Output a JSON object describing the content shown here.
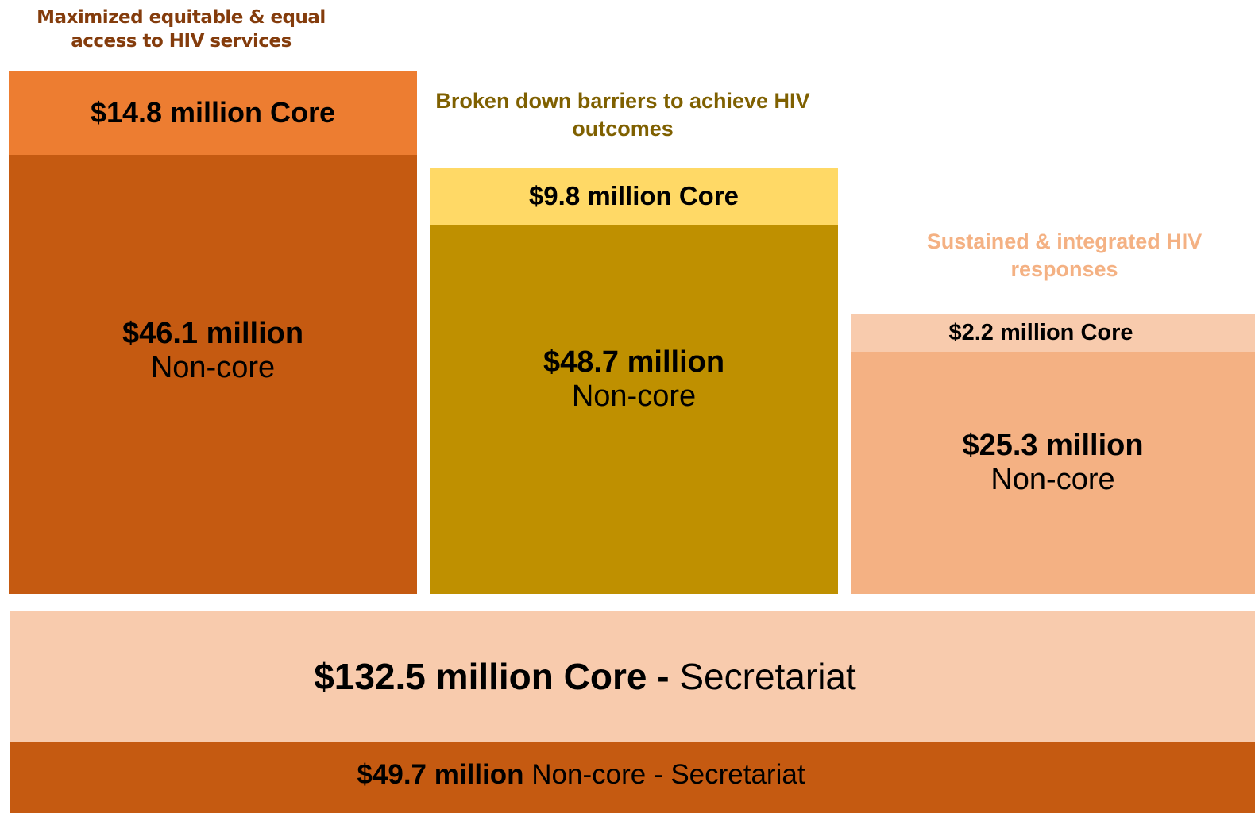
{
  "columns": [
    {
      "title": "Maximized equitable & equal access to HIV services",
      "core": "$14.8 million Core",
      "noncore_amount": "$46.1 million",
      "noncore_label": "Non-core"
    },
    {
      "title": "Broken down barriers to achieve HIV outcomes",
      "core": "$9.8 million Core",
      "noncore_amount": "$48.7 million",
      "noncore_label": "Non-core"
    },
    {
      "title": "Sustained & integrated HIV responses",
      "core": "$2.2 million Core",
      "noncore_amount": "$25.3 million",
      "noncore_label": "Non-core"
    }
  ],
  "secretariat": {
    "core_bold": "$132.5 million Core -",
    "core_rest": "Secretariat",
    "noncore_bold": "$49.7 million",
    "noncore_rest": "Non-core - Secretariat"
  }
}
